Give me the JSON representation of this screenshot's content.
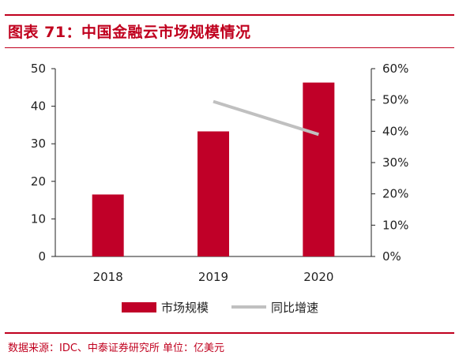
{
  "header": {
    "title": "图表 71：中国金融云市场规模情况"
  },
  "footer": {
    "source": "数据来源：IDC、中泰证券研究所  单位：亿美元"
  },
  "colors": {
    "accent": "#c0001e",
    "bar": "#c00028",
    "line": "#c0c0c0",
    "axis": "#222222"
  },
  "chart_data": {
    "type": "bar",
    "categories": [
      "2018",
      "2019",
      "2020"
    ],
    "series": [
      {
        "name": "市场规模",
        "type": "bar",
        "axis": "left",
        "values": [
          16.5,
          33.3,
          46.3
        ]
      },
      {
        "name": "同比增速",
        "type": "line",
        "axis": "right",
        "values": [
          null,
          0.495,
          0.39
        ]
      }
    ],
    "yleft": {
      "lim": [
        0,
        50
      ],
      "ticks": [
        0,
        10,
        20,
        30,
        40,
        50
      ]
    },
    "yright": {
      "lim": [
        0,
        0.6
      ],
      "ticks": [
        "0%",
        "10%",
        "20%",
        "30%",
        "40%",
        "50%",
        "60%"
      ]
    },
    "legend_position": "bottom"
  }
}
